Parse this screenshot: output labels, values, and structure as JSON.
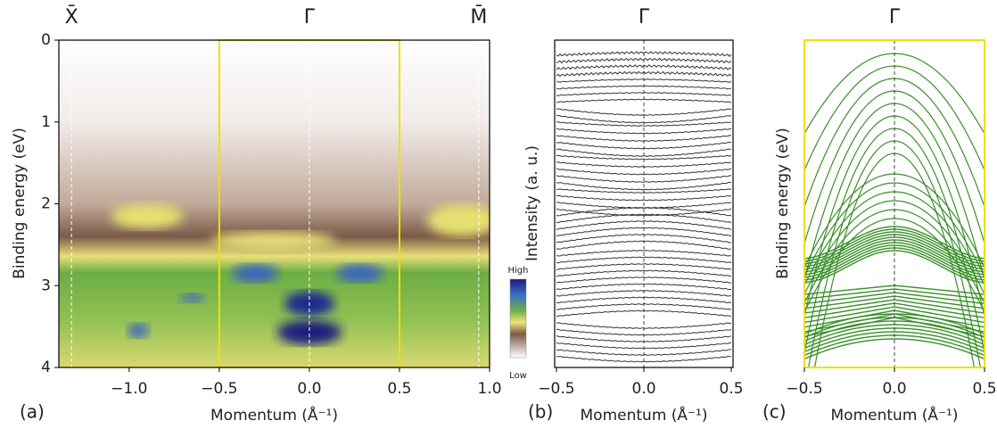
{
  "chart_data": [
    {
      "type": "heatmap",
      "panel_label": "(a)",
      "x_label": "Momentum (Å⁻¹)",
      "y_label": "Binding energy (eV)",
      "xlim": [
        -1.39,
        1.0
      ],
      "ylim": [
        4,
        0
      ],
      "xticks": [
        {
          "value": -1.0,
          "label": "−1.0"
        },
        {
          "value": -0.5,
          "label": "−0.5"
        },
        {
          "value": 0.0,
          "label": "0.0"
        },
        {
          "value": 0.5,
          "label": "0.5"
        },
        {
          "value": 1.0,
          "label": "1.0"
        }
      ],
      "yticks": [
        0,
        1,
        2,
        3,
        4
      ],
      "top_ticks": [
        {
          "value": -1.32,
          "label": "X̄"
        },
        {
          "value": 0,
          "label": "Γ̄"
        },
        {
          "value": 0.94,
          "label": "M̄"
        }
      ],
      "highlight_box": [
        -0.5,
        0.5
      ],
      "highlight_color": "#f0e000",
      "colorbar": {
        "high": "High",
        "low": "Low"
      }
    },
    {
      "type": "stacked-curves",
      "panel_label": "(b)",
      "x_label": "Momentum (Å⁻¹)",
      "y_label": "Intensity (a. u.)",
      "xlim": [
        -0.51,
        0.51
      ],
      "xticks": [
        {
          "value": -0.5,
          "label": "−0.5"
        },
        {
          "value": 0.0,
          "label": "0.0"
        },
        {
          "value": 0.5,
          "label": "0.5"
        }
      ],
      "top_ticks": [
        {
          "value": 0,
          "label": "Γ̄"
        }
      ],
      "color": "#333333"
    },
    {
      "type": "bands",
      "panel_label": "(c)",
      "x_label": "Momentum (Å⁻¹)",
      "y_label": "Binding energy (eV)",
      "xlim": [
        -0.5,
        0.5
      ],
      "xticks": [
        {
          "value": -0.5,
          "label": "−0.5"
        },
        {
          "value": 0.0,
          "label": "0.0"
        },
        {
          "value": 0.5,
          "label": "0.5"
        }
      ],
      "top_ticks": [
        {
          "value": 0,
          "label": "Γ̄"
        }
      ],
      "color": "#3a8f2a",
      "frame_color": "#f0e000"
    }
  ]
}
